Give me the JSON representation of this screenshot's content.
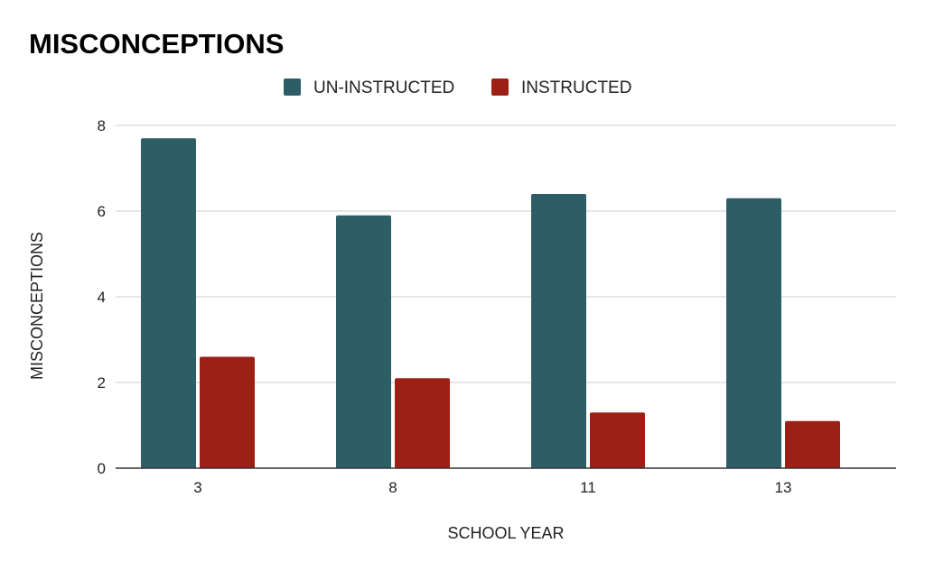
{
  "chart_data": {
    "type": "bar",
    "title": "MISCONCEPTIONS",
    "xlabel": "SCHOOL YEAR",
    "ylabel": "MISCONCEPTIONS",
    "categories": [
      "3",
      "8",
      "11",
      "13"
    ],
    "series": [
      {
        "name": "UN-INSTRUCTED",
        "color": "#2e5e65",
        "values": [
          7.7,
          5.9,
          6.4,
          6.3
        ]
      },
      {
        "name": "INSTRUCTED",
        "color": "#9c2015",
        "values": [
          2.6,
          2.1,
          1.3,
          1.1
        ]
      }
    ],
    "ylim": [
      0,
      8
    ],
    "yticks": [
      "0",
      "2",
      "4",
      "6",
      "8"
    ],
    "grid": true,
    "legend": "top-center"
  }
}
